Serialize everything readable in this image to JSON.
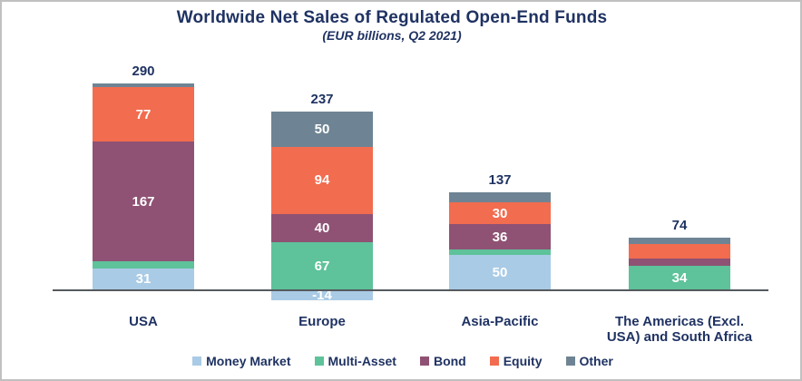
{
  "chart_data": {
    "type": "bar",
    "variant": "stacked-column",
    "title": "Worldwide Net Sales of Regulated Open-End Funds",
    "subtitle": "(EUR billions, Q2 2021)",
    "value_unit": "EUR billions",
    "period": "Q2 2021",
    "categories": [
      "USA",
      "Europe",
      "Asia-Pacific",
      "The Americas (Excl.\nUSA) and South Africa"
    ],
    "series": [
      {
        "name": "Money Market",
        "color": "#A9CBE5",
        "values": [
          31,
          -14,
          50,
          0
        ],
        "labels": [
          "31",
          "-14",
          "50",
          ""
        ]
      },
      {
        "name": "Multi-Asset",
        "color": "#5EC29A",
        "values": [
          10,
          67,
          7,
          34
        ],
        "labels": [
          "",
          "67",
          "",
          "34"
        ]
      },
      {
        "name": "Bond",
        "color": "#8F5274",
        "values": [
          167,
          40,
          36,
          10
        ],
        "labels": [
          "167",
          "40",
          "36",
          ""
        ]
      },
      {
        "name": "Equity",
        "color": "#F26C4F",
        "values": [
          77,
          94,
          30,
          21
        ],
        "labels": [
          "77",
          "94",
          "30",
          ""
        ]
      },
      {
        "name": "Other",
        "color": "#6E8494",
        "values": [
          5,
          50,
          14,
          9
        ],
        "labels": [
          "",
          "50",
          "",
          ""
        ]
      }
    ],
    "totals": [
      "290",
      "237",
      "137",
      "74"
    ],
    "legend_position": "bottom",
    "grid": false,
    "baseline": 0,
    "text_color": "#1F3262",
    "axis_color": "#555A5E"
  }
}
